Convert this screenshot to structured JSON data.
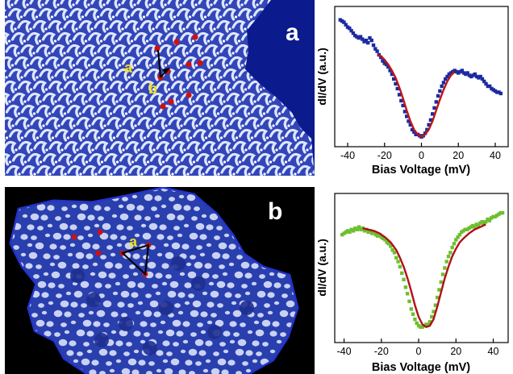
{
  "panels": {
    "a": {
      "letter": "a",
      "lattice_vectors": [
        "a",
        "b"
      ],
      "colors": {
        "background": "#0b1a8c",
        "feature": "#dfe6ff",
        "marker": "#d01010",
        "vector_label": "#f2e21a"
      }
    },
    "b": {
      "letter": "b",
      "lattice_vectors": [
        "a"
      ],
      "colors": {
        "background": "#000000",
        "flake": "#2a3fae",
        "feature": "#e6ecff",
        "marker": "#d01010",
        "vector_label": "#f2e21a"
      }
    }
  },
  "chart_data": [
    {
      "type": "scatter",
      "title": "",
      "xlabel": "Bias Voltage (mV)",
      "ylabel": "dI/dV (a.u.)",
      "xlim": [
        -47,
        47
      ],
      "ylim": [
        0,
        1
      ],
      "x_ticks": [
        -40,
        -20,
        0,
        20,
        40
      ],
      "y_ticks": [],
      "grid": false,
      "series": [
        {
          "kind": "scatter",
          "color": "#1a2aa0",
          "x": [
            -44,
            -43,
            -42,
            -41,
            -40,
            -39,
            -38,
            -37,
            -36,
            -35,
            -34,
            -33,
            -32,
            -31,
            -30,
            -29,
            -28,
            -27,
            -26,
            -25,
            -24,
            -23,
            -22,
            -21,
            -20,
            -19,
            -18,
            -17,
            -16,
            -15,
            -14,
            -13,
            -12,
            -11,
            -10,
            -9,
            -8,
            -7,
            -6,
            -5,
            -4,
            -3,
            -2,
            -1,
            0,
            1,
            2,
            3,
            4,
            5,
            6,
            7,
            8,
            9,
            10,
            11,
            12,
            13,
            14,
            15,
            16,
            17,
            18,
            19,
            20,
            21,
            22,
            23,
            24,
            25,
            26,
            27,
            28,
            29,
            30,
            31,
            32,
            33,
            34,
            35,
            36,
            37,
            38,
            39,
            40,
            41,
            42,
            43
          ],
          "y": [
            0.97,
            0.96,
            0.95,
            0.93,
            0.91,
            0.9,
            0.88,
            0.86,
            0.84,
            0.83,
            0.82,
            0.83,
            0.81,
            0.79,
            0.8,
            0.78,
            0.82,
            0.8,
            0.76,
            0.73,
            0.71,
            0.68,
            0.66,
            0.63,
            0.61,
            0.6,
            0.58,
            0.55,
            0.52,
            0.48,
            0.44,
            0.4,
            0.35,
            0.3,
            0.26,
            0.21,
            0.17,
            0.13,
            0.1,
            0.06,
            0.04,
            0.02,
            0.02,
            0.01,
            0.0,
            0.01,
            0.03,
            0.06,
            0.1,
            0.14,
            0.19,
            0.24,
            0.29,
            0.34,
            0.38,
            0.42,
            0.45,
            0.48,
            0.5,
            0.52,
            0.53,
            0.54,
            0.55,
            0.54,
            0.53,
            0.54,
            0.55,
            0.53,
            0.52,
            0.53,
            0.51,
            0.5,
            0.51,
            0.52,
            0.5,
            0.49,
            0.5,
            0.48,
            0.46,
            0.44,
            0.42,
            0.42,
            0.4,
            0.39,
            0.38,
            0.37,
            0.37,
            0.36
          ]
        },
        {
          "kind": "line",
          "color": "#c01515",
          "x": [
            -24,
            -22,
            -20,
            -18,
            -16,
            -14,
            -12,
            -10,
            -8,
            -6,
            -4,
            -2,
            0,
            2,
            4,
            6,
            8,
            10,
            12,
            14,
            16,
            18
          ],
          "y": [
            0.68,
            0.67,
            0.64,
            0.6,
            0.55,
            0.49,
            0.41,
            0.32,
            0.22,
            0.13,
            0.06,
            0.02,
            0.0,
            0.02,
            0.06,
            0.13,
            0.22,
            0.31,
            0.39,
            0.46,
            0.51,
            0.54
          ]
        }
      ]
    },
    {
      "type": "scatter",
      "title": "",
      "xlabel": "Bias Voltage (mV)",
      "ylabel": "dI/dV (a.u.)",
      "xlim": [
        -45,
        48
      ],
      "ylim": [
        0,
        1
      ],
      "x_ticks": [
        -40,
        -20,
        0,
        20,
        40
      ],
      "y_ticks": [],
      "grid": false,
      "series": [
        {
          "kind": "scatter",
          "color": "#6cbf2e",
          "x": [
            -41,
            -40,
            -39,
            -38,
            -37,
            -36,
            -35,
            -34,
            -33,
            -32,
            -31,
            -30,
            -29,
            -28,
            -27,
            -26,
            -25,
            -24,
            -23,
            -22,
            -21,
            -20,
            -19,
            -18,
            -17,
            -16,
            -15,
            -14,
            -13,
            -12,
            -11,
            -10,
            -9,
            -8,
            -7,
            -6,
            -5,
            -4,
            -3,
            -2,
            -1,
            0,
            1,
            2,
            3,
            4,
            5,
            6,
            7,
            8,
            9,
            10,
            11,
            12,
            13,
            14,
            15,
            16,
            17,
            18,
            19,
            20,
            21,
            22,
            23,
            24,
            25,
            26,
            27,
            28,
            29,
            30,
            31,
            32,
            33,
            34,
            35,
            36,
            37,
            38,
            39,
            40,
            41,
            42,
            43,
            44,
            45
          ],
          "y": [
            0.76,
            0.77,
            0.78,
            0.79,
            0.78,
            0.8,
            0.79,
            0.81,
            0.8,
            0.82,
            0.8,
            0.81,
            0.79,
            0.8,
            0.78,
            0.79,
            0.77,
            0.78,
            0.76,
            0.75,
            0.76,
            0.74,
            0.73,
            0.72,
            0.7,
            0.69,
            0.67,
            0.64,
            0.62,
            0.58,
            0.55,
            0.51,
            0.46,
            0.41,
            0.35,
            0.3,
            0.24,
            0.18,
            0.14,
            0.1,
            0.07,
            0.05,
            0.04,
            0.04,
            0.05,
            0.06,
            0.06,
            0.08,
            0.12,
            0.16,
            0.21,
            0.27,
            0.33,
            0.39,
            0.45,
            0.5,
            0.55,
            0.59,
            0.62,
            0.66,
            0.69,
            0.72,
            0.74,
            0.76,
            0.78,
            0.79,
            0.8,
            0.8,
            0.81,
            0.82,
            0.83,
            0.82,
            0.84,
            0.83,
            0.85,
            0.86,
            0.85,
            0.86,
            0.88,
            0.87,
            0.89,
            0.9,
            0.9,
            0.91,
            0.92,
            0.93,
            0.93
          ]
        },
        {
          "kind": "line",
          "color": "#b01018",
          "x": [
            -30,
            -27,
            -24,
            -21,
            -18,
            -15,
            -12,
            -10,
            -8,
            -6,
            -4,
            -2,
            0,
            2,
            4,
            6,
            8,
            10,
            12,
            14,
            16,
            18,
            20,
            22,
            24,
            27,
            30,
            33,
            36
          ],
          "y": [
            0.81,
            0.8,
            0.79,
            0.77,
            0.74,
            0.7,
            0.64,
            0.58,
            0.51,
            0.42,
            0.32,
            0.21,
            0.12,
            0.06,
            0.04,
            0.05,
            0.1,
            0.2,
            0.31,
            0.42,
            0.51,
            0.59,
            0.65,
            0.7,
            0.73,
            0.77,
            0.8,
            0.82,
            0.84
          ]
        }
      ]
    }
  ]
}
